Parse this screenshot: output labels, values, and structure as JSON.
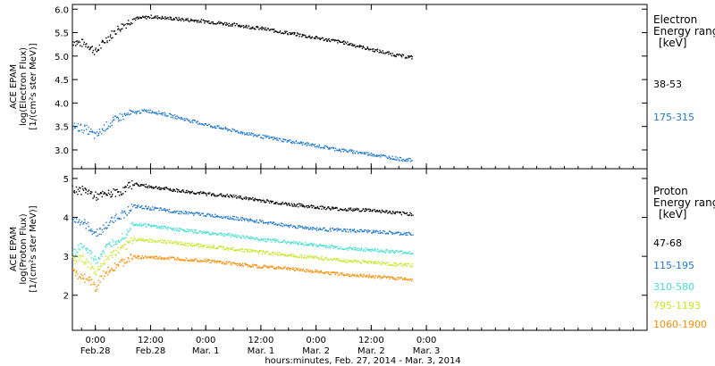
{
  "x_axis": {
    "title": "hours:minutes, Feb. 27, 2014 - Mar. 3, 2014",
    "range_hours": [
      -5,
      120
    ],
    "ticks": [
      {
        "hour": 0,
        "time": "0:00",
        "date": "Feb.28"
      },
      {
        "hour": 12,
        "time": "12:00",
        "date": "Feb.28"
      },
      {
        "hour": 24,
        "time": "0:00",
        "date": "Mar. 1"
      },
      {
        "hour": 36,
        "time": "12:00",
        "date": "Mar. 1"
      },
      {
        "hour": 48,
        "time": "0:00",
        "date": "Mar. 2"
      },
      {
        "hour": 60,
        "time": "12:00",
        "date": "Mar. 2"
      },
      {
        "hour": 72,
        "time": "0:00",
        "date": "Mar. 3"
      }
    ]
  },
  "chart_data": [
    {
      "type": "scatter",
      "panel": "electron",
      "ylabel": "ACE EPAM",
      "ylabel2": "log(Electron Flux)",
      "ylabel3": "[1/(cm²s ster MeV)]",
      "ylim": [
        2.6,
        6.1
      ],
      "yticks": [
        "3.0",
        "3.5",
        "4.0",
        "4.5",
        "5.0",
        "5.5",
        "6.0"
      ],
      "legend_title": [
        "Electron",
        "Energy ranges",
        "[keV]"
      ],
      "series": [
        {
          "name": "38-53",
          "color": "#000000",
          "points": [
            [
              -5,
              5.32
            ],
            [
              -2,
              5.27
            ],
            [
              0,
              5.1
            ],
            [
              2,
              5.35
            ],
            [
              5,
              5.6
            ],
            [
              8,
              5.8
            ],
            [
              12,
              5.85
            ],
            [
              18,
              5.8
            ],
            [
              24,
              5.75
            ],
            [
              30,
              5.68
            ],
            [
              36,
              5.6
            ],
            [
              42,
              5.5
            ],
            [
              48,
              5.4
            ],
            [
              54,
              5.3
            ],
            [
              60,
              5.15
            ],
            [
              66,
              5.02
            ],
            [
              69,
              4.98
            ]
          ]
        },
        {
          "name": "175-315",
          "color": "#1e78d2",
          "points": [
            [
              -5,
              3.52
            ],
            [
              -2,
              3.45
            ],
            [
              0,
              3.3
            ],
            [
              2,
              3.5
            ],
            [
              5,
              3.7
            ],
            [
              8,
              3.8
            ],
            [
              11,
              3.85
            ],
            [
              14,
              3.8
            ],
            [
              18,
              3.7
            ],
            [
              24,
              3.55
            ],
            [
              30,
              3.42
            ],
            [
              36,
              3.3
            ],
            [
              42,
              3.2
            ],
            [
              48,
              3.1
            ],
            [
              54,
              3.0
            ],
            [
              60,
              2.92
            ],
            [
              66,
              2.82
            ],
            [
              69,
              2.79
            ]
          ]
        }
      ]
    },
    {
      "type": "scatter",
      "panel": "proton",
      "ylabel": "ACE EPAM",
      "ylabel2": "log(Proton Flux)",
      "ylabel3": "[1/(cm²s ster MeV)]",
      "ylim": [
        1.1,
        5.25
      ],
      "yticks": [
        "2",
        "3",
        "4",
        "5"
      ],
      "legend_title": [
        "Proton",
        "Energy ranges",
        "[keV]"
      ],
      "series": [
        {
          "name": "47-68",
          "color": "#000000",
          "points": [
            [
              -5,
              4.72
            ],
            [
              -2,
              4.7
            ],
            [
              0,
              4.55
            ],
            [
              3,
              4.62
            ],
            [
              6,
              4.7
            ],
            [
              8,
              4.88
            ],
            [
              12,
              4.8
            ],
            [
              18,
              4.7
            ],
            [
              24,
              4.62
            ],
            [
              30,
              4.55
            ],
            [
              36,
              4.45
            ],
            [
              42,
              4.35
            ],
            [
              48,
              4.28
            ],
            [
              54,
              4.22
            ],
            [
              60,
              4.2
            ],
            [
              66,
              4.12
            ],
            [
              69,
              4.1
            ]
          ]
        },
        {
          "name": "115-195",
          "color": "#1e78d2",
          "points": [
            [
              -5,
              3.95
            ],
            [
              -3,
              3.9
            ],
            [
              -1,
              3.7
            ],
            [
              0,
              3.6
            ],
            [
              2,
              3.75
            ],
            [
              4,
              4.0
            ],
            [
              6,
              4.1
            ],
            [
              8,
              4.3
            ],
            [
              12,
              4.25
            ],
            [
              18,
              4.15
            ],
            [
              24,
              4.08
            ],
            [
              30,
              4.0
            ],
            [
              36,
              3.9
            ],
            [
              42,
              3.8
            ],
            [
              48,
              3.72
            ],
            [
              54,
              3.68
            ],
            [
              60,
              3.65
            ],
            [
              66,
              3.6
            ],
            [
              69,
              3.58
            ]
          ]
        },
        {
          "name": "310-580",
          "color": "#40e0d0",
          "points": [
            [
              -5,
              3.1
            ],
            [
              -3,
              3.3
            ],
            [
              -1,
              3.05
            ],
            [
              0,
              2.9
            ],
            [
              2,
              3.2
            ],
            [
              4,
              3.4
            ],
            [
              6,
              3.55
            ],
            [
              8,
              3.85
            ],
            [
              12,
              3.8
            ],
            [
              18,
              3.7
            ],
            [
              24,
              3.62
            ],
            [
              30,
              3.55
            ],
            [
              36,
              3.45
            ],
            [
              42,
              3.38
            ],
            [
              48,
              3.3
            ],
            [
              54,
              3.22
            ],
            [
              60,
              3.18
            ],
            [
              66,
              3.12
            ],
            [
              69,
              3.1
            ]
          ]
        },
        {
          "name": "795-1193",
          "color": "#c8e61e",
          "points": [
            [
              -5,
              2.9
            ],
            [
              -3,
              3.0
            ],
            [
              -1,
              2.7
            ],
            [
              0,
              2.6
            ],
            [
              2,
              2.9
            ],
            [
              4,
              3.1
            ],
            [
              6,
              3.2
            ],
            [
              8,
              3.45
            ],
            [
              12,
              3.42
            ],
            [
              18,
              3.35
            ],
            [
              24,
              3.28
            ],
            [
              30,
              3.2
            ],
            [
              36,
              3.12
            ],
            [
              42,
              3.05
            ],
            [
              48,
              2.98
            ],
            [
              54,
              2.9
            ],
            [
              60,
              2.86
            ],
            [
              66,
              2.8
            ],
            [
              69,
              2.78
            ]
          ]
        },
        {
          "name": "1060-1900",
          "color": "#ff8c00",
          "points": [
            [
              -5,
              2.6
            ],
            [
              -3,
              2.5
            ],
            [
              -1,
              2.35
            ],
            [
              0,
              2.2
            ],
            [
              2,
              2.6
            ],
            [
              4,
              2.75
            ],
            [
              6,
              2.85
            ],
            [
              8,
              3.0
            ],
            [
              12,
              2.98
            ],
            [
              18,
              2.95
            ],
            [
              24,
              2.9
            ],
            [
              30,
              2.82
            ],
            [
              36,
              2.75
            ],
            [
              42,
              2.7
            ],
            [
              48,
              2.62
            ],
            [
              54,
              2.55
            ],
            [
              60,
              2.5
            ],
            [
              66,
              2.45
            ],
            [
              69,
              2.42
            ]
          ]
        }
      ]
    }
  ]
}
